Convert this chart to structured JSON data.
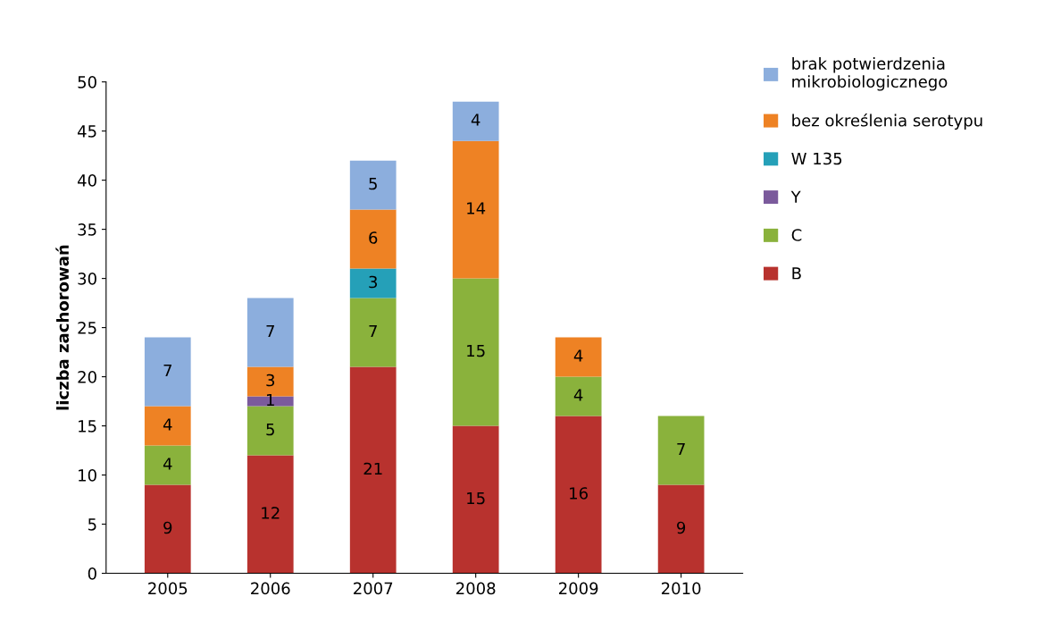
{
  "chart_data": {
    "type": "bar",
    "stacked": true,
    "ylabel": "liczba zachorowań",
    "categories": [
      "2005",
      "2006",
      "2007",
      "2008",
      "2009",
      "2010"
    ],
    "series": [
      {
        "name": "B",
        "color": "#b8322e",
        "values": [
          9,
          12,
          21,
          15,
          16,
          9
        ]
      },
      {
        "name": "C",
        "color": "#8ab23c",
        "values": [
          4,
          5,
          7,
          15,
          4,
          7
        ]
      },
      {
        "name": "Y",
        "color": "#7b5a9c",
        "values": [
          null,
          1,
          null,
          null,
          null,
          null
        ]
      },
      {
        "name": "W 135",
        "color": "#25a0b8",
        "values": [
          null,
          null,
          3,
          null,
          null,
          null
        ]
      },
      {
        "name": "bez określenia serotypu",
        "color": "#ee8224",
        "values": [
          4,
          3,
          6,
          14,
          4,
          null
        ]
      },
      {
        "name": "brak potwierdzenia\nmikrobiologicznego",
        "color": "#8caedd",
        "values": [
          7,
          7,
          5,
          4,
          null,
          null
        ]
      }
    ],
    "ylim": [
      0,
      50
    ],
    "yticks": [
      0,
      5,
      10,
      15,
      20,
      25,
      30,
      35,
      40,
      45,
      50
    ],
    "data_labels": true,
    "legend": "top right",
    "grid": false
  }
}
